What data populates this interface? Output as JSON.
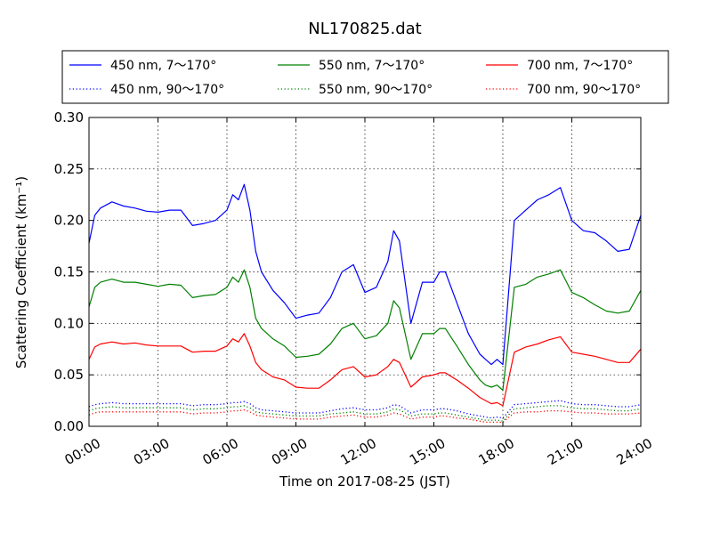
{
  "chart_data": {
    "type": "line",
    "title": "NL170825.dat",
    "xlabel": "Time on 2017-08-25 (JST)",
    "ylabel": "Scattering Coefficient (km⁻¹)",
    "x_unit": "hours",
    "xlim": [
      0,
      24
    ],
    "ylim": [
      0,
      0.3
    ],
    "grid": true,
    "legend_position": "top",
    "x_ticks": [
      {
        "value": 0,
        "label": "00:00"
      },
      {
        "value": 3,
        "label": "03:00"
      },
      {
        "value": 6,
        "label": "06:00"
      },
      {
        "value": 9,
        "label": "09:00"
      },
      {
        "value": 12,
        "label": "12:00"
      },
      {
        "value": 15,
        "label": "15:00"
      },
      {
        "value": 18,
        "label": "18:00"
      },
      {
        "value": 21,
        "label": "21:00"
      },
      {
        "value": 24,
        "label": "24:00"
      }
    ],
    "y_ticks": [
      {
        "value": 0,
        "label": "0.00"
      },
      {
        "value": 0.05,
        "label": "0.05"
      },
      {
        "value": 0.1,
        "label": "0.10"
      },
      {
        "value": 0.15,
        "label": "0.15"
      },
      {
        "value": 0.2,
        "label": "0.20"
      },
      {
        "value": 0.25,
        "label": "0.25"
      },
      {
        "value": 0.3,
        "label": "0.30"
      }
    ],
    "x": [
      0,
      0.25,
      0.5,
      1,
      1.5,
      2,
      2.5,
      3,
      3.5,
      4,
      4.5,
      5,
      5.5,
      6,
      6.25,
      6.5,
      6.75,
      7,
      7.25,
      7.5,
      8,
      8.5,
      9,
      9.5,
      10,
      10.5,
      11,
      11.5,
      12,
      12.5,
      13,
      13.25,
      13.5,
      14,
      14.5,
      15,
      15.25,
      15.5,
      16,
      16.5,
      17,
      17.25,
      17.5,
      17.75,
      18,
      18.5,
      19,
      19.5,
      20,
      20.5,
      21,
      21.5,
      22,
      22.5,
      23,
      23.5,
      24
    ],
    "series": [
      {
        "name": "450 nm, 7～170°",
        "color": "#0000ff",
        "style": "solid",
        "values": [
          0.178,
          0.205,
          0.212,
          0.218,
          0.214,
          0.212,
          0.209,
          0.208,
          0.21,
          0.21,
          0.195,
          0.197,
          0.2,
          0.21,
          0.225,
          0.22,
          0.235,
          0.21,
          0.17,
          0.15,
          0.132,
          0.12,
          0.105,
          0.108,
          0.11,
          0.125,
          0.15,
          0.157,
          0.13,
          0.135,
          0.16,
          0.19,
          0.18,
          0.1,
          0.14,
          0.14,
          0.15,
          0.15,
          0.12,
          0.09,
          0.07,
          0.065,
          0.06,
          0.065,
          0.06,
          0.2,
          0.21,
          0.22,
          0.225,
          0.232,
          0.2,
          0.19,
          0.188,
          0.18,
          0.17,
          0.172,
          0.205
        ]
      },
      {
        "name": "550 nm, 7～170°",
        "color": "#008000",
        "style": "solid",
        "values": [
          0.116,
          0.135,
          0.14,
          0.143,
          0.14,
          0.14,
          0.138,
          0.136,
          0.138,
          0.137,
          0.125,
          0.127,
          0.128,
          0.135,
          0.145,
          0.14,
          0.152,
          0.135,
          0.105,
          0.095,
          0.085,
          0.078,
          0.067,
          0.068,
          0.07,
          0.08,
          0.095,
          0.1,
          0.085,
          0.088,
          0.1,
          0.122,
          0.115,
          0.065,
          0.09,
          0.09,
          0.095,
          0.095,
          0.078,
          0.06,
          0.045,
          0.04,
          0.038,
          0.04,
          0.035,
          0.135,
          0.138,
          0.145,
          0.148,
          0.152,
          0.13,
          0.125,
          0.118,
          0.112,
          0.11,
          0.112,
          0.132
        ]
      },
      {
        "name": "700 nm, 7～170°",
        "color": "#ff0000",
        "style": "solid",
        "values": [
          0.065,
          0.077,
          0.08,
          0.082,
          0.08,
          0.081,
          0.079,
          0.078,
          0.078,
          0.078,
          0.072,
          0.073,
          0.073,
          0.078,
          0.085,
          0.082,
          0.09,
          0.078,
          0.062,
          0.055,
          0.048,
          0.045,
          0.038,
          0.037,
          0.037,
          0.045,
          0.055,
          0.058,
          0.048,
          0.05,
          0.058,
          0.065,
          0.062,
          0.038,
          0.048,
          0.05,
          0.052,
          0.052,
          0.045,
          0.037,
          0.028,
          0.025,
          0.022,
          0.023,
          0.02,
          0.072,
          0.077,
          0.08,
          0.084,
          0.087,
          0.072,
          0.07,
          0.068,
          0.065,
          0.062,
          0.062,
          0.075
        ]
      },
      {
        "name": "450 nm, 90～170°",
        "color": "#0000ff",
        "style": "dotted",
        "values": [
          0.019,
          0.021,
          0.022,
          0.023,
          0.022,
          0.022,
          0.022,
          0.022,
          0.022,
          0.022,
          0.02,
          0.021,
          0.021,
          0.022,
          0.023,
          0.023,
          0.024,
          0.022,
          0.018,
          0.016,
          0.015,
          0.014,
          0.013,
          0.013,
          0.013,
          0.015,
          0.017,
          0.018,
          0.016,
          0.016,
          0.018,
          0.021,
          0.02,
          0.013,
          0.016,
          0.016,
          0.017,
          0.017,
          0.015,
          0.012,
          0.01,
          0.009,
          0.008,
          0.009,
          0.008,
          0.021,
          0.022,
          0.023,
          0.024,
          0.025,
          0.022,
          0.021,
          0.021,
          0.02,
          0.019,
          0.019,
          0.021
        ]
      },
      {
        "name": "550 nm, 90～170°",
        "color": "#008000",
        "style": "dotted",
        "values": [
          0.015,
          0.017,
          0.018,
          0.019,
          0.018,
          0.018,
          0.018,
          0.018,
          0.018,
          0.018,
          0.016,
          0.017,
          0.017,
          0.018,
          0.019,
          0.019,
          0.02,
          0.018,
          0.014,
          0.013,
          0.012,
          0.011,
          0.01,
          0.01,
          0.01,
          0.012,
          0.013,
          0.014,
          0.012,
          0.012,
          0.014,
          0.017,
          0.016,
          0.01,
          0.012,
          0.012,
          0.013,
          0.013,
          0.011,
          0.009,
          0.007,
          0.006,
          0.006,
          0.006,
          0.005,
          0.017,
          0.018,
          0.019,
          0.02,
          0.02,
          0.018,
          0.017,
          0.017,
          0.016,
          0.015,
          0.015,
          0.017
        ]
      },
      {
        "name": "700 nm, 90～170°",
        "color": "#ff0000",
        "style": "dotted",
        "values": [
          0.011,
          0.013,
          0.014,
          0.014,
          0.014,
          0.014,
          0.014,
          0.014,
          0.014,
          0.014,
          0.012,
          0.013,
          0.013,
          0.014,
          0.015,
          0.015,
          0.016,
          0.014,
          0.011,
          0.01,
          0.009,
          0.008,
          0.007,
          0.007,
          0.007,
          0.009,
          0.01,
          0.011,
          0.009,
          0.009,
          0.011,
          0.013,
          0.012,
          0.007,
          0.009,
          0.009,
          0.01,
          0.01,
          0.008,
          0.007,
          0.005,
          0.004,
          0.004,
          0.004,
          0.004,
          0.013,
          0.014,
          0.014,
          0.015,
          0.015,
          0.014,
          0.013,
          0.013,
          0.012,
          0.012,
          0.012,
          0.013
        ]
      }
    ],
    "legend_order": [
      0,
      1,
      2,
      3,
      4,
      5
    ]
  }
}
